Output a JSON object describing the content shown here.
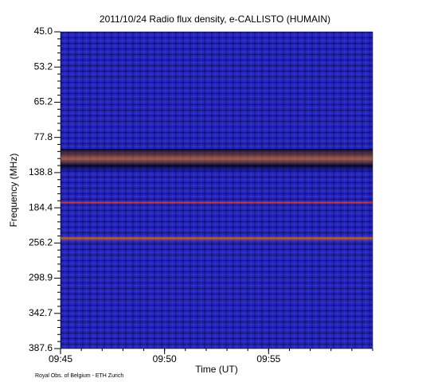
{
  "chart_data": {
    "type": "spectrogram",
    "title": "2011/10/24  Radio flux density, e-CALLISTO (HUMAIN)",
    "y_label": "Frequency (MHz)",
    "x_label": "Time (UT)",
    "footer": "Royal Obs. of Belgium - ETH Zurich",
    "y_categories": [
      "45.0",
      "53.2",
      "65.2",
      "77.8",
      "138.8",
      "184.4",
      "256.2",
      "298.9",
      "342.7",
      "387.6"
    ],
    "xlim": [
      "09:45",
      "10:00"
    ],
    "xticks": [
      "09:45",
      "09:50",
      "09:55"
    ]
  }
}
